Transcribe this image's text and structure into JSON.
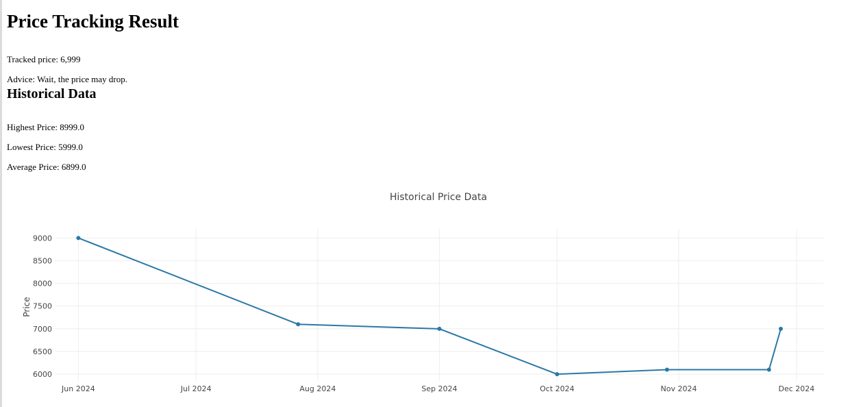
{
  "page": {
    "title": "Price Tracking Result",
    "tracked_price_label": "Tracked price:",
    "tracked_price_value": "6,999",
    "advice_label": "Advice:",
    "advice_value": "Wait, the price may drop.",
    "history_heading": "Historical Data",
    "highest_label": "Highest Price:",
    "highest_value": "8999.0",
    "lowest_label": "Lowest Price:",
    "lowest_value": "5999.0",
    "average_label": "Average Price:",
    "average_value": "6899.0"
  },
  "chart_data": {
    "type": "line",
    "title": "Historical Price Data",
    "xlabel": "",
    "ylabel": "Price",
    "line_color": "#2a78a6",
    "grid": true,
    "x": [
      "2024-06-01",
      "2024-07-27",
      "2024-09-01",
      "2024-10-01",
      "2024-10-29",
      "2024-11-24",
      "2024-11-27"
    ],
    "values": [
      8999,
      7099,
      6999,
      5999,
      6099,
      6099,
      6999
    ],
    "xticks": [
      "Jun 2024",
      "Jul 2024",
      "Aug 2024",
      "Sep 2024",
      "Oct 2024",
      "Nov 2024",
      "Dec 2024"
    ],
    "xtick_dates": [
      "2024-06-01",
      "2024-07-01",
      "2024-08-01",
      "2024-09-01",
      "2024-10-01",
      "2024-11-01",
      "2024-12-01"
    ],
    "yticks": [
      6000,
      6500,
      7000,
      7500,
      8000,
      8500,
      9000
    ],
    "ylim": [
      5850,
      9200
    ],
    "xlim": [
      "2024-05-26",
      "2024-12-08"
    ]
  }
}
